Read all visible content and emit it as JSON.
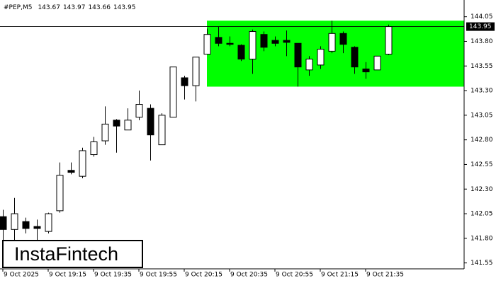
{
  "chart_data": {
    "type": "candlestick",
    "symbol": "#PEP,M5",
    "watermark": "InstaFintech",
    "x": [
      "9 Oct 2025",
      null,
      null,
      null,
      "9 Oct 19:15",
      null,
      null,
      null,
      "9 Oct 19:35",
      null,
      null,
      null,
      "9 Oct 19:55",
      null,
      null,
      null,
      "9 Oct 20:15",
      null,
      null,
      null,
      "9 Oct 20:35",
      null,
      null,
      null,
      "9 Oct 20:55",
      null,
      null,
      null,
      "9 Oct 21:15",
      null,
      null,
      null,
      "9 Oct 21:35",
      null,
      null
    ],
    "open": [
      142.02,
      141.89,
      141.97,
      141.92,
      141.87,
      142.08,
      142.49,
      142.43,
      142.65,
      142.79,
      143.0,
      142.9,
      143.03,
      143.12,
      142.75,
      143.03,
      143.43,
      143.35,
      143.67,
      143.84,
      143.78,
      143.76,
      143.62,
      143.87,
      143.81,
      143.81,
      143.78,
      143.51,
      143.56,
      143.7,
      143.88,
      143.74,
      143.52,
      143.51,
      143.67
    ],
    "high": [
      142.09,
      142.21,
      142.01,
      141.99,
      142.06,
      142.57,
      142.57,
      142.72,
      142.83,
      143.14,
      143.01,
      143.12,
      143.3,
      143.16,
      143.07,
      143.54,
      143.45,
      143.64,
      143.93,
      143.95,
      143.85,
      143.77,
      143.92,
      143.9,
      143.85,
      143.91,
      143.78,
      143.65,
      143.75,
      144.01,
      143.9,
      143.75,
      143.59,
      143.65,
      143.97
    ],
    "low": [
      141.74,
      141.74,
      141.85,
      141.77,
      141.85,
      142.06,
      142.45,
      142.41,
      142.63,
      142.75,
      142.67,
      142.9,
      143.0,
      142.59,
      142.75,
      143.03,
      143.21,
      143.19,
      143.67,
      143.75,
      143.75,
      143.6,
      143.47,
      143.7,
      143.75,
      143.65,
      143.34,
      143.45,
      143.52,
      143.68,
      143.68,
      143.47,
      143.42,
      143.51,
      143.66
    ],
    "close": [
      141.89,
      142.05,
      141.9,
      141.9,
      142.05,
      142.44,
      142.47,
      142.69,
      142.78,
      142.96,
      142.94,
      143.0,
      143.16,
      142.85,
      143.05,
      143.54,
      143.35,
      143.64,
      143.87,
      143.78,
      143.77,
      143.62,
      143.9,
      143.74,
      143.78,
      143.79,
      143.54,
      143.62,
      143.72,
      143.88,
      143.77,
      143.54,
      143.49,
      143.65,
      143.95
    ],
    "up_color": "#ffffff",
    "down_color": "#000000",
    "zone": {
      "low": 143.34,
      "high": 144.01,
      "color": "#00ff00"
    },
    "last_price": 143.95,
    "ylim": [
      141.49,
      144.22
    ],
    "yticks": [
      144.05,
      {
        "value": 143.8,
        "label": "143.80"
      },
      143.55,
      {
        "value": 143.3,
        "label": "143.30"
      },
      143.05,
      {
        "value": 142.8,
        "label": "142.80"
      },
      142.55,
      {
        "value": 142.3,
        "label": "142.30"
      },
      142.05,
      {
        "value": 141.8,
        "label": "141.80"
      },
      141.55
    ]
  }
}
